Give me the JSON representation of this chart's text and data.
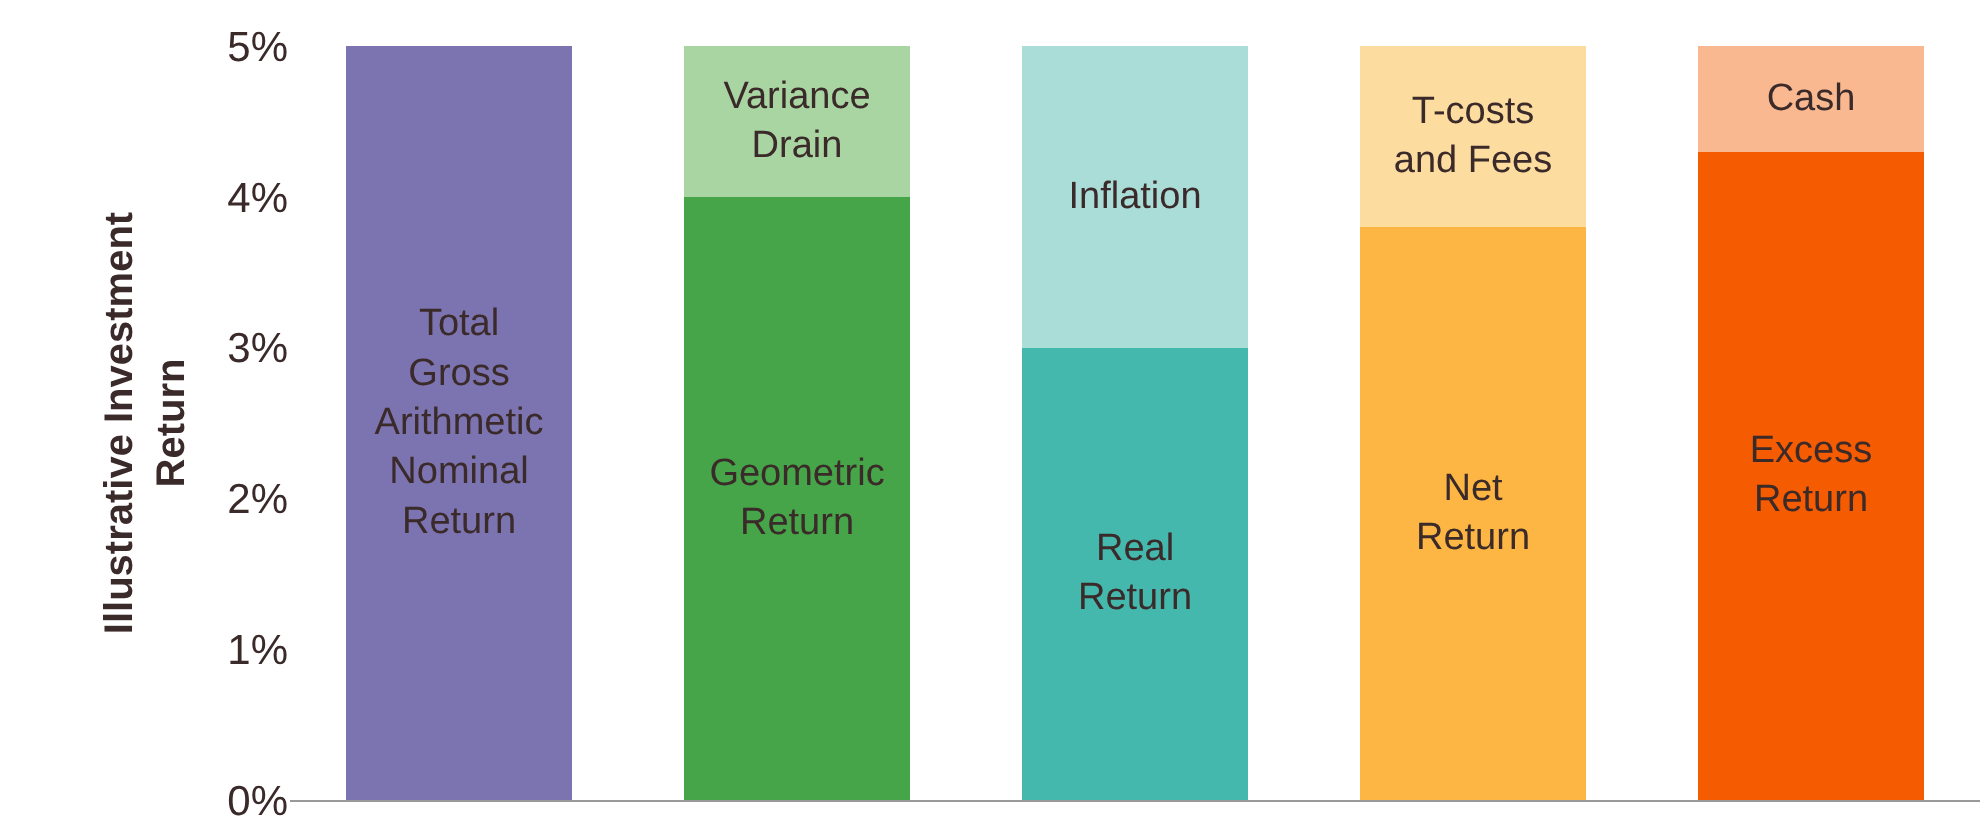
{
  "chart_data": {
    "type": "bar",
    "stacked": true,
    "categories": [
      null,
      null,
      null,
      null,
      null
    ],
    "ylabel": "Illustrative Investment\nReturn",
    "ylim": [
      0,
      5
    ],
    "yticks": [
      {
        "value": 0,
        "label": "0%"
      },
      {
        "value": 1,
        "label": "1%"
      },
      {
        "value": 2,
        "label": "2%"
      },
      {
        "value": 3,
        "label": "3%"
      },
      {
        "value": 4,
        "label": "4%"
      },
      {
        "value": 5,
        "label": "5%"
      }
    ],
    "series": [
      {
        "values": [
          5,
          4,
          3,
          3.8,
          4.3
        ],
        "colors": [
          "#7b74b0",
          "#46a548",
          "#45b8ae",
          "#fdb643",
          "#f55b00"
        ],
        "value_labels": [
          "Total\nGross\nArithmetic\nNominal\nReturn",
          "Geometric\nReturn",
          "Real\nReturn",
          "Net\nReturn",
          "Excess\nReturn"
        ]
      },
      {
        "values": [
          null,
          1,
          2,
          1.2,
          0.7
        ],
        "colors": [
          null,
          "#a8d5a2",
          "#aadcd8",
          "#fddca0",
          "#fab890"
        ],
        "value_labels": [
          null,
          "Variance\nDrain",
          "Inflation",
          "T-costs\nand Fees",
          "Cash"
        ]
      }
    ]
  }
}
